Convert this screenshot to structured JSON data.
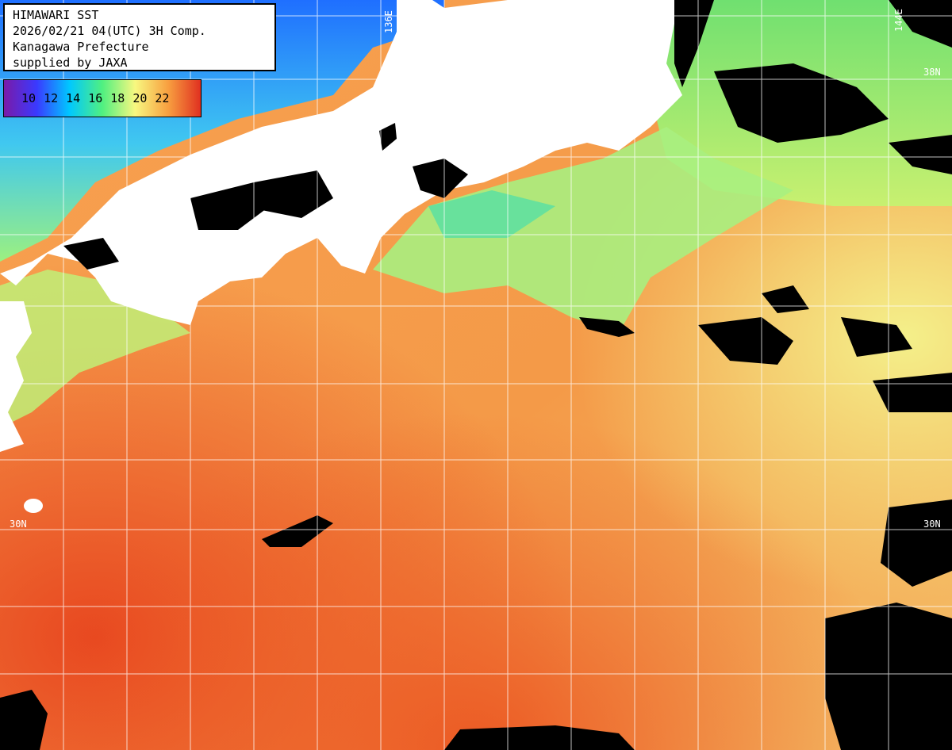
{
  "caption": {
    "line1": "HIMAWARI SST",
    "line2": "2026/02/21 04(UTC) 3H Comp.",
    "line3": "Kanagawa Prefecture",
    "line4": "supplied by JAXA"
  },
  "legend": {
    "values": [
      "10",
      "12",
      "14",
      "16",
      "18",
      "20",
      "22"
    ],
    "unit": "",
    "colors": [
      "#7a1aa8",
      "#3a3aff",
      "#00c8ff",
      "#50f080",
      "#f8f880",
      "#f8a040",
      "#e03020"
    ]
  },
  "grid": {
    "lon_labels": [
      "136E",
      "144E"
    ],
    "lat_labels": [
      "38N",
      "30N",
      "30N"
    ],
    "line_color": "#ffffff"
  },
  "colors": {
    "land": "#ffffff",
    "cloud": "#000000",
    "warm_sea": "#f07830",
    "mid_sea": "#f8b050",
    "cool_sea": "#a0f080",
    "cold_sea": "#40b0ff"
  }
}
